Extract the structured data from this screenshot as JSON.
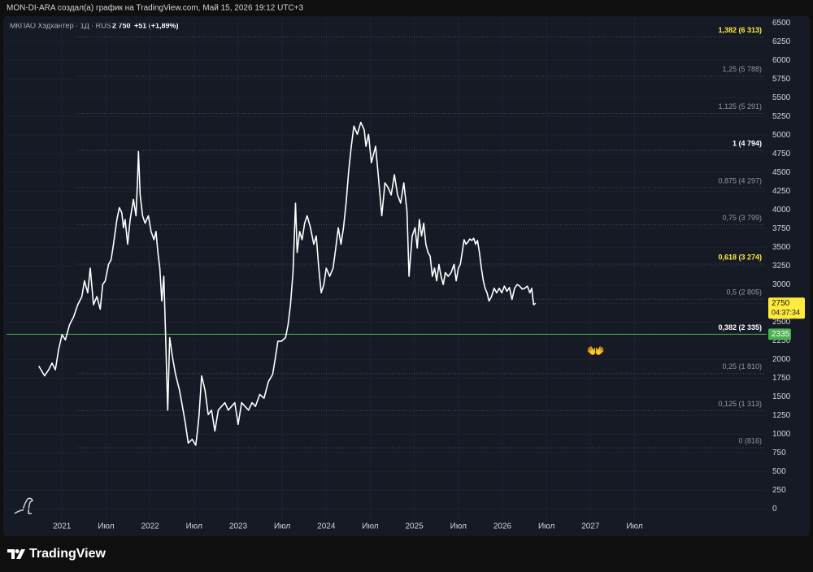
{
  "header": {
    "attribution": "MON-DI-ARA создал(а) график на TradingView.com, Май 15, 2026 19:12 UTC+3"
  },
  "footer": {
    "brand": "TradingView"
  },
  "chart_data": {
    "type": "line",
    "title": "МКПАО Хэдхантер · 1Д · RUS",
    "last_price_text": "2 750",
    "change_text": "+51 (+1,89%)",
    "color": "#ffffff",
    "grid": true,
    "x": [
      2020.736,
      2020.802,
      2020.849,
      2020.887,
      2020.925,
      2020.962,
      2021.0,
      2021.038,
      2021.085,
      2021.132,
      2021.179,
      2021.226,
      2021.255,
      2021.292,
      2021.321,
      2021.358,
      2021.396,
      2021.434,
      2021.462,
      2021.491,
      2021.528,
      2021.557,
      2021.585,
      2021.623,
      2021.651,
      2021.679,
      2021.698,
      2021.717,
      2021.745,
      2021.774,
      2021.811,
      2021.84,
      2021.858,
      2021.868,
      2021.887,
      2021.915,
      2021.943,
      2021.981,
      2022.011,
      2022.044,
      2022.067,
      2022.089,
      2022.111,
      2022.133,
      2022.156,
      2022.178,
      2022.2,
      2022.222,
      2022.256,
      2022.289,
      2022.333,
      2022.367,
      2022.4,
      2022.433,
      2022.478,
      2022.519,
      2022.538,
      2022.557,
      2022.585,
      2022.623,
      2022.66,
      2022.698,
      2022.736,
      2022.774,
      2022.811,
      2022.849,
      2022.887,
      2022.925,
      2022.962,
      2023.0,
      2023.039,
      2023.078,
      2023.118,
      2023.157,
      2023.196,
      2023.245,
      2023.294,
      2023.343,
      2023.392,
      2023.422,
      2023.451,
      2023.49,
      2023.538,
      2023.566,
      2023.594,
      2023.623,
      2023.651,
      2023.67,
      2023.698,
      2023.726,
      2023.755,
      2023.783,
      2023.821,
      2023.858,
      2023.887,
      2023.915,
      2023.943,
      2023.972,
      2024.0,
      2024.039,
      2024.078,
      2024.108,
      2024.137,
      2024.167,
      2024.196,
      2024.225,
      2024.255,
      2024.284,
      2024.314,
      2024.353,
      2024.392,
      2024.431,
      2024.451,
      2024.48,
      2024.512,
      2024.56,
      2024.595,
      2024.631,
      2024.667,
      2024.702,
      2024.738,
      2024.774,
      2024.81,
      2024.845,
      2024.881,
      2024.917,
      2024.94,
      2024.976,
      2025.008,
      2025.033,
      2025.057,
      2025.082,
      2025.107,
      2025.131,
      2025.156,
      2025.18,
      2025.205,
      2025.23,
      2025.254,
      2025.279,
      2025.303,
      2025.328,
      2025.352,
      2025.385,
      2025.418,
      2025.451,
      2025.475,
      2025.5,
      2025.522,
      2025.543,
      2025.565,
      2025.587,
      2025.609,
      2025.63,
      2025.652,
      2025.674,
      2025.696,
      2025.717,
      2025.739,
      2025.761,
      2025.783,
      2025.804,
      2025.826,
      2025.848,
      2025.877,
      2025.906,
      2025.935,
      2025.964,
      2025.993,
      2026.022,
      2026.051,
      2026.08,
      2026.109,
      2026.138,
      2026.167,
      2026.196,
      2026.225,
      2026.254,
      2026.283,
      2026.312,
      2026.333,
      2026.355,
      2026.377
    ],
    "values": [
      1910,
      1780,
      1860,
      1950,
      1860,
      2130,
      2330,
      2260,
      2460,
      2570,
      2730,
      2840,
      3050,
      2890,
      3220,
      2730,
      2840,
      2670,
      3000,
      3050,
      3270,
      3330,
      3540,
      3870,
      4030,
      3960,
      3760,
      3870,
      3540,
      3870,
      4140,
      3920,
      4410,
      4780,
      4200,
      3920,
      3820,
      3920,
      3710,
      3600,
      3710,
      3430,
      3220,
      2780,
      3110,
      2240,
      1320,
      2290,
      2020,
      1800,
      1590,
      1370,
      1150,
      880,
      930,
      850,
      1040,
      1260,
      1780,
      1590,
      1260,
      1320,
      1040,
      1320,
      1370,
      1420,
      1320,
      1370,
      1420,
      1130,
      1420,
      1370,
      1320,
      1420,
      1370,
      1530,
      1480,
      1700,
      1800,
      2020,
      2240,
      2240,
      2290,
      2460,
      2730,
      3160,
      4090,
      3430,
      3710,
      3600,
      3820,
      3920,
      3760,
      3540,
      3650,
      3220,
      2890,
      3000,
      3220,
      3110,
      3220,
      3490,
      3760,
      3540,
      3760,
      4090,
      4520,
      4850,
      5120,
      5010,
      5170,
      5070,
      4850,
      5010,
      4630,
      4850,
      4410,
      3920,
      4360,
      4300,
      4200,
      4470,
      4200,
      4090,
      4360,
      3980,
      3110,
      3650,
      3760,
      3490,
      3870,
      3650,
      3820,
      3540,
      3430,
      3380,
      3110,
      3220,
      3050,
      3270,
      3110,
      3000,
      3160,
      3110,
      3160,
      3270,
      3050,
      3220,
      3270,
      3430,
      3600,
      3540,
      3570,
      3610,
      3590,
      3620,
      3540,
      3590,
      3430,
      3220,
      3050,
      2950,
      2890,
      2780,
      2840,
      2950,
      2890,
      2950,
      2890,
      2980,
      2910,
      2960,
      2800,
      2950,
      3000,
      2980,
      2940,
      2950,
      2980,
      2890,
      2950,
      2730,
      2750
    ],
    "xlim": [
      2020.37,
      2029.0
    ],
    "xticks": [
      2021,
      {
        "value": 2021.5,
        "label": "Июл"
      },
      2022,
      {
        "value": 2022.5,
        "label": "Июл"
      },
      2023,
      {
        "value": 2023.5,
        "label": "Июл"
      },
      2024,
      {
        "value": 2024.5,
        "label": "Июл"
      },
      2025,
      {
        "value": 2025.5,
        "label": "Июл"
      },
      2026,
      {
        "value": 2026.5,
        "label": "Июл"
      },
      2027,
      {
        "value": 2027.5,
        "label": "Июл"
      }
    ],
    "ylim": [
      -150,
      6590
    ],
    "yticks": [
      0,
      250,
      500,
      750,
      1000,
      1250,
      1500,
      1750,
      2000,
      2250,
      2500,
      2750,
      3000,
      3250,
      3500,
      3750,
      4000,
      4250,
      4500,
      4750,
      5000,
      5250,
      5500,
      5750,
      6000,
      6250,
      6500
    ],
    "levels": [
      {
        "label": "1,382 (6 313)",
        "value": 6313,
        "color": "#ffeb3b"
      },
      {
        "label": "1,25 (5 788)",
        "value": 5788,
        "color": "#9598a1"
      },
      {
        "label": "1,125 (5 291)",
        "value": 5291,
        "color": "#9598a1"
      },
      {
        "label": "1 (4 794)",
        "value": 4794,
        "color": "#ffffff"
      },
      {
        "label": "0,875 (4 297)",
        "value": 4297,
        "color": "#9598a1"
      },
      {
        "label": "0,75 (3 799)",
        "value": 3799,
        "color": "#9598a1"
      },
      {
        "label": "0,618 (3 274)",
        "value": 3274,
        "color": "#ffeb3b"
      },
      {
        "label": "0,5 (2 805)",
        "value": 2805,
        "color": "#9598a1"
      },
      {
        "label": "0,382 (2 335)",
        "value": 2335,
        "color": "#ffffff"
      },
      {
        "label": "0,25 (1 810)",
        "value": 1810,
        "color": "#9598a1"
      },
      {
        "label": "0,125 (1 313)",
        "value": 1313,
        "color": "#9598a1"
      },
      {
        "label": "0 (816)",
        "value": 816,
        "color": "#9598a1"
      }
    ],
    "hline": {
      "value": 2335,
      "color": "#4caf50"
    },
    "price_tag": {
      "value": 2750,
      "countdown": "04:37:34"
    },
    "annotations": [
      {
        "text": "👐"
      }
    ]
  }
}
